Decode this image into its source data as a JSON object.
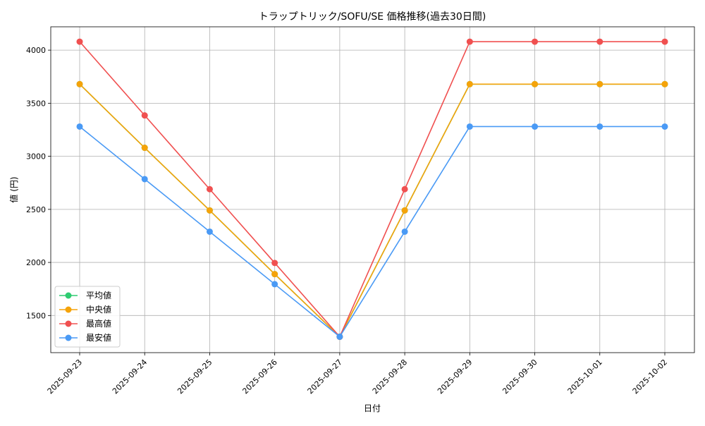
{
  "chart_data": {
    "type": "line",
    "title": "トラップトリック/SOFU/SE 価格推移(過去30日間)",
    "xlabel": "日付",
    "ylabel": "値 (円)",
    "x": [
      "2025-09-23",
      "2025-09-24",
      "2025-09-25",
      "2025-09-26",
      "2025-09-27",
      "2025-09-28",
      "2025-09-29",
      "2025-09-30",
      "2025-10-01",
      "2025-10-02"
    ],
    "ylim": [
      1150,
      4220
    ],
    "yticks": [
      1500,
      2000,
      2500,
      3000,
      3500,
      4000
    ],
    "grid": true,
    "legend_position": "lower-left",
    "series": [
      {
        "name": "平均値",
        "color": "#2ecc71",
        "values": [
          3680,
          3080,
          2490,
          1890,
          1300,
          2490,
          3680,
          3680,
          3680,
          3680
        ]
      },
      {
        "name": "中央値",
        "color": "#f5a30a",
        "values": [
          3680,
          3080,
          2490,
          1890,
          1300,
          2490,
          3680,
          3680,
          3680,
          3680
        ]
      },
      {
        "name": "最高値",
        "color": "#f05050",
        "values": [
          4080,
          3385,
          2690,
          1995,
          1300,
          2690,
          4080,
          4080,
          4080,
          4080
        ]
      },
      {
        "name": "最安値",
        "color": "#4a9af5",
        "values": [
          3280,
          2785,
          2290,
          1795,
          1300,
          2290,
          3280,
          3280,
          3280,
          3280
        ]
      }
    ]
  }
}
